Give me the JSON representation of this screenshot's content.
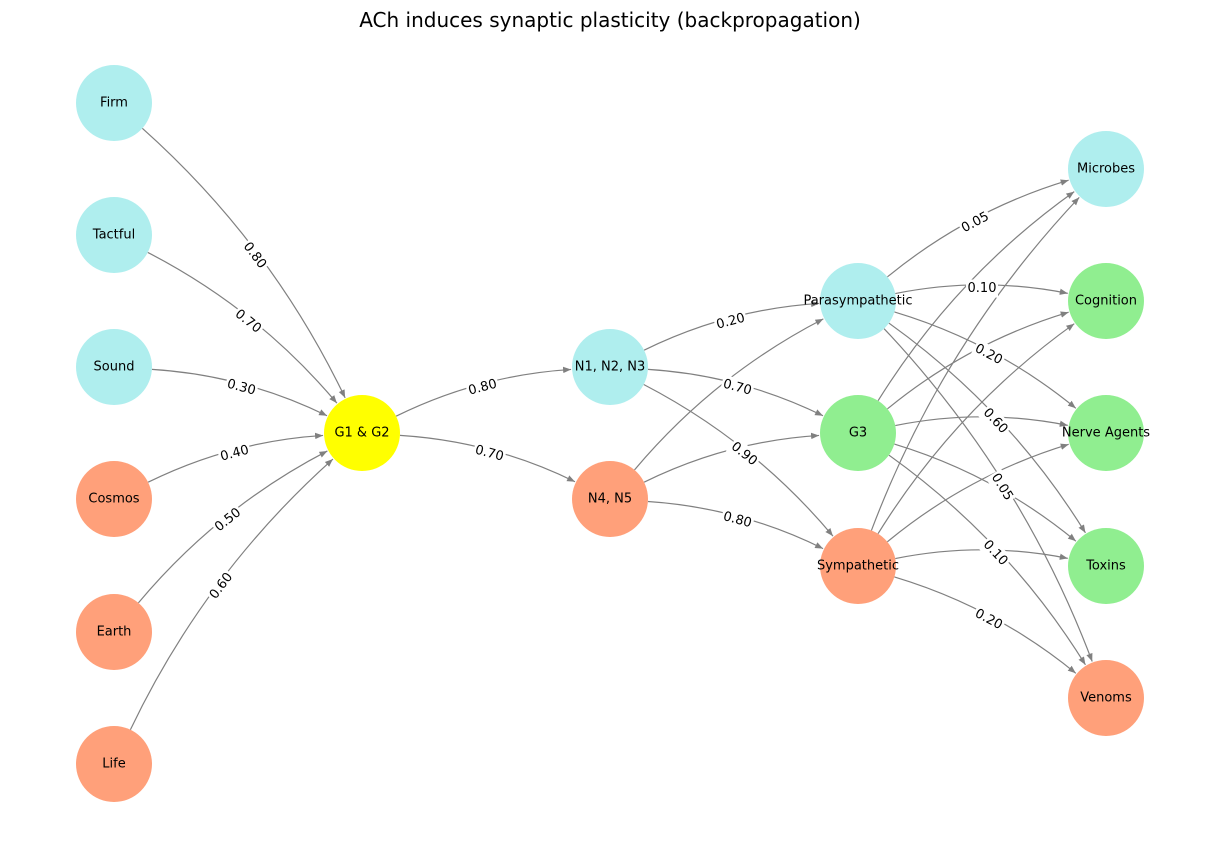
{
  "title": "ACh induces synaptic plasticity (backpropagation)",
  "colors": {
    "cyan": "#afeeee",
    "salmon": "#ffa07a",
    "yellow": "#ffff00",
    "green": "#90ee90",
    "edge": "#808080"
  },
  "nodes": [
    {
      "id": "firm",
      "label": "Firm",
      "color": "cyan"
    },
    {
      "id": "tactful",
      "label": "Tactful",
      "color": "cyan"
    },
    {
      "id": "sound",
      "label": "Sound",
      "color": "cyan"
    },
    {
      "id": "cosmos",
      "label": "Cosmos",
      "color": "salmon"
    },
    {
      "id": "earth",
      "label": "Earth",
      "color": "salmon"
    },
    {
      "id": "life",
      "label": "Life",
      "color": "salmon"
    },
    {
      "id": "g1g2",
      "label": "G1 & G2",
      "color": "yellow"
    },
    {
      "id": "n123",
      "label": "N1, N2, N3",
      "color": "cyan"
    },
    {
      "id": "n45",
      "label": "N4, N5",
      "color": "salmon"
    },
    {
      "id": "para",
      "label": "Parasympathetic",
      "color": "cyan"
    },
    {
      "id": "g3",
      "label": "G3",
      "color": "green"
    },
    {
      "id": "symp",
      "label": "Sympathetic",
      "color": "salmon"
    },
    {
      "id": "microbes",
      "label": "Microbes",
      "color": "cyan"
    },
    {
      "id": "cognition",
      "label": "Cognition",
      "color": "green"
    },
    {
      "id": "nerve",
      "label": "Nerve Agents",
      "color": "green"
    },
    {
      "id": "toxins",
      "label": "Toxins",
      "color": "green"
    },
    {
      "id": "venoms",
      "label": "Venoms",
      "color": "salmon"
    }
  ],
  "edges": [
    {
      "from": "firm",
      "to": "g1g2",
      "label": "0.80"
    },
    {
      "from": "tactful",
      "to": "g1g2",
      "label": "0.70"
    },
    {
      "from": "sound",
      "to": "g1g2",
      "label": "0.30"
    },
    {
      "from": "cosmos",
      "to": "g1g2",
      "label": "0.40"
    },
    {
      "from": "earth",
      "to": "g1g2",
      "label": "0.50"
    },
    {
      "from": "life",
      "to": "g1g2",
      "label": "0.60"
    },
    {
      "from": "g1g2",
      "to": "n123",
      "label": "0.80"
    },
    {
      "from": "g1g2",
      "to": "n45",
      "label": "0.70"
    },
    {
      "from": "n123",
      "to": "para",
      "label": "0.20"
    },
    {
      "from": "n123",
      "to": "g3",
      "label": "0.70"
    },
    {
      "from": "n123",
      "to": "symp",
      "label": "0.90"
    },
    {
      "from": "n45",
      "to": "para",
      "label": ""
    },
    {
      "from": "n45",
      "to": "g3",
      "label": ""
    },
    {
      "from": "n45",
      "to": "symp",
      "label": "0.80"
    },
    {
      "from": "para",
      "to": "microbes",
      "label": "0.05"
    },
    {
      "from": "para",
      "to": "cognition",
      "label": "0.10"
    },
    {
      "from": "para",
      "to": "nerve",
      "label": "0.20"
    },
    {
      "from": "para",
      "to": "toxins",
      "label": "0.60"
    },
    {
      "from": "para",
      "to": "venoms",
      "label": "0.05"
    },
    {
      "from": "g3",
      "to": "microbes",
      "label": ""
    },
    {
      "from": "g3",
      "to": "cognition",
      "label": ""
    },
    {
      "from": "g3",
      "to": "nerve",
      "label": ""
    },
    {
      "from": "g3",
      "to": "toxins",
      "label": ""
    },
    {
      "from": "g3",
      "to": "venoms",
      "label": "0.10"
    },
    {
      "from": "symp",
      "to": "microbes",
      "label": ""
    },
    {
      "from": "symp",
      "to": "cognition",
      "label": ""
    },
    {
      "from": "symp",
      "to": "nerve",
      "label": ""
    },
    {
      "from": "symp",
      "to": "toxins",
      "label": ""
    },
    {
      "from": "symp",
      "to": "venoms",
      "label": "0.20"
    }
  ]
}
